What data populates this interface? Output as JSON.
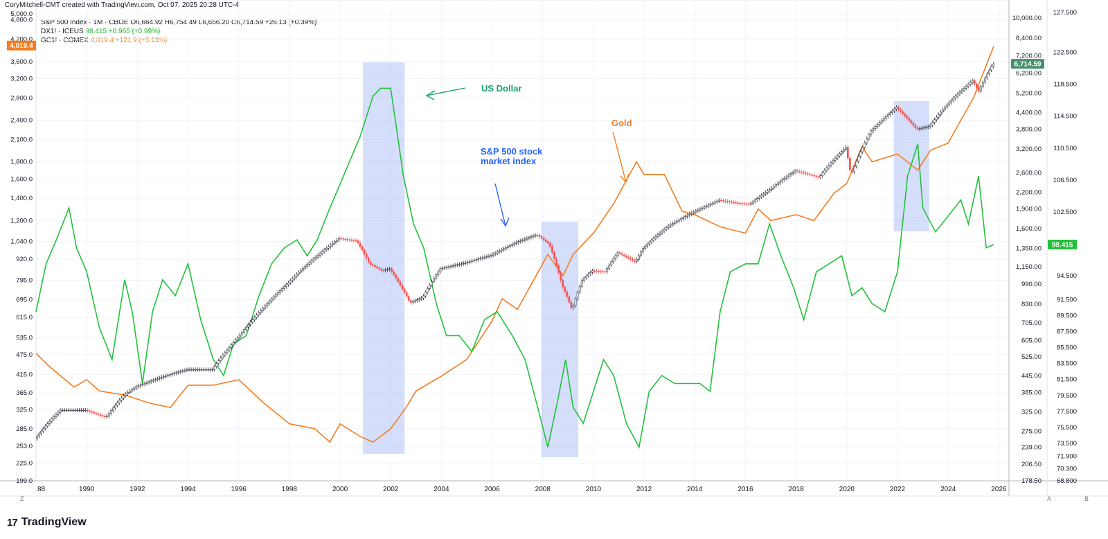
{
  "credit": "CoryMitchell-CMT created with TradingView.com, Oct 07, 2025 20:28 UTC-4",
  "legend": [
    {
      "symbol": "S&P 500 Index · 1M · CBOE",
      "values": "O6,664.92  H6,754.49  L6,656.20  C6,714.59  +26.13 (+0.39%)",
      "color": "#131722"
    },
    {
      "symbol": "DX1! · ICEUS",
      "values": "98.415  +0.965 (+0.99%)",
      "color": "#22ab2f"
    },
    {
      "symbol": "GC1! · COMEX",
      "values": "4,019.4  +121.9 (+3.13%)",
      "color": "#f57c1f"
    }
  ],
  "annotations": {
    "us_dollar": "US Dollar",
    "sp500_line1": "S&P 500 stock",
    "sp500_line2": "market index",
    "gold": "Gold"
  },
  "footer": {
    "logo_mark": "17",
    "brand": "TradingView"
  },
  "corner_labels": {
    "left": "Z",
    "a": "A",
    "b": "B"
  },
  "colors": {
    "sp_up": "#26a69a",
    "sp_down": "#ef5350",
    "sp_neutral": "#131722",
    "dxy": "#22c13a",
    "gold": "#f57c1f",
    "shade": "#b9c8f6",
    "us_dollar_text": "#1a9e6e",
    "sp_text": "#2962ff",
    "gold_text": "#f57c1f"
  },
  "chart_data": {
    "type": "line",
    "x_axis": {
      "ticks": [
        "88",
        "1990",
        "1992",
        "1994",
        "1996",
        "1998",
        "2000",
        "2002",
        "2004",
        "2006",
        "2008",
        "2010",
        "2012",
        "2014",
        "2016",
        "2018",
        "2020",
        "2022",
        "2024",
        "2026"
      ]
    },
    "left_axis_gold": {
      "ticks": [
        "5,000.0",
        "4,800.0",
        "4,200.0",
        "3,600.0",
        "3,200.0",
        "2,800.0",
        "2,400.0",
        "2,100.0",
        "1,800.0",
        "1,600.0",
        "1,400.0",
        "1,200.0",
        "1,040.0",
        "920.0",
        "795.0",
        "695.0",
        "615.0",
        "535.0",
        "475.0",
        "415.0",
        "365.0",
        "325.0",
        "285.0",
        "253.0",
        "225.0",
        "199.0"
      ],
      "last_value": "4,019.4"
    },
    "right_axis_sp500": {
      "ticks": [
        "10,000.00",
        "8,400.00",
        "7,200.00",
        "6,200.00",
        "5,200.00",
        "4,400.00",
        "3,800.00",
        "3,200.00",
        "2,600.00",
        "2,200.00",
        "1,900.00",
        "1,600.00",
        "1,350.00",
        "1,150.00",
        "990.00",
        "830.00",
        "705.00",
        "605.00",
        "525.00",
        "445.00",
        "385.00",
        "325.00",
        "275.00",
        "239.00",
        "206.50",
        "178.50"
      ],
      "last_value": "6,714.59"
    },
    "right_axis_dxy": {
      "ticks": [
        "127.500",
        "122.500",
        "118.500",
        "114.500",
        "110.500",
        "106.500",
        "102.500",
        "98.500",
        "94.500",
        "91.500",
        "89.500",
        "87.500",
        "85.500",
        "83.500",
        "81.500",
        "79.500",
        "77.500",
        "75.500",
        "73.500",
        "71.900",
        "70.300",
        "68.800"
      ],
      "last_value": "98.415"
    },
    "shaded_periods": [
      [
        2000.9,
        2002.55
      ],
      [
        2007.95,
        2009.4
      ],
      [
        2021.85,
        2023.25
      ]
    ],
    "series": [
      {
        "name": "S&P 500 Index",
        "axis": "sp500",
        "x": [
          1988.0,
          1989.0,
          1990.0,
          1990.8,
          1991.5,
          1992.0,
          1993.0,
          1994.0,
          1995.0,
          1996.0,
          1997.0,
          1998.0,
          1999.0,
          2000.0,
          2000.7,
          2001.2,
          2001.7,
          2002.0,
          2002.8,
          2003.3,
          2004.0,
          2005.0,
          2006.0,
          2007.0,
          2007.8,
          2008.3,
          2008.8,
          2009.2,
          2009.6,
          2010.0,
          2010.5,
          2011.0,
          2011.7,
          2012.0,
          2013.0,
          2014.0,
          2015.0,
          2015.7,
          2016.2,
          2017.0,
          2018.0,
          2018.95,
          2019.5,
          2020.0,
          2020.2,
          2020.7,
          2021.0,
          2022.0,
          2022.4,
          2022.8,
          2023.3,
          2024.0,
          2025.0,
          2025.25,
          2025.8
        ],
        "values": [
          257,
          330,
          330,
          310,
          375,
          405,
          440,
          470,
          470,
          620,
          800,
          1000,
          1230,
          1470,
          1440,
          1180,
          1110,
          1130,
          840,
          880,
          1130,
          1190,
          1270,
          1420,
          1520,
          1400,
          980,
          790,
          1030,
          1110,
          1100,
          1300,
          1200,
          1350,
          1640,
          1850,
          2050,
          2000,
          1980,
          2250,
          2650,
          2500,
          2900,
          3250,
          2550,
          3300,
          3750,
          4600,
          4200,
          3800,
          3900,
          4700,
          5800,
          5300,
          6700
        ]
      },
      {
        "name": "Gold",
        "axis": "gold",
        "x": [
          1988.0,
          1988.5,
          1989.5,
          1990.0,
          1990.5,
          1991.5,
          1992.5,
          1993.3,
          1994.0,
          1995.0,
          1996.0,
          1997.0,
          1998.0,
          1999.0,
          1999.6,
          2000.0,
          2000.8,
          2001.3,
          2002.0,
          2002.6,
          2003.0,
          2004.0,
          2005.0,
          2006.0,
          2006.4,
          2007.0,
          2008.2,
          2008.8,
          2009.2,
          2010.0,
          2010.8,
          2011.7,
          2012.0,
          2012.8,
          2013.5,
          2014.0,
          2015.0,
          2016.0,
          2016.5,
          2017.0,
          2018.0,
          2018.7,
          2019.5,
          2020.0,
          2020.6,
          2021.0,
          2022.0,
          2022.8,
          2023.3,
          2024.0,
          2024.5,
          2025.0,
          2025.8
        ],
        "values": [
          480,
          440,
          380,
          400,
          370,
          360,
          340,
          330,
          385,
          385,
          400,
          340,
          295,
          285,
          260,
          295,
          270,
          260,
          285,
          330,
          370,
          410,
          460,
          600,
          700,
          650,
          950,
          820,
          950,
          1100,
          1350,
          1800,
          1650,
          1650,
          1280,
          1250,
          1150,
          1100,
          1300,
          1200,
          1250,
          1200,
          1450,
          1550,
          2000,
          1800,
          1900,
          1700,
          1950,
          2050,
          2400,
          2800,
          4000
        ]
      },
      {
        "name": "DXY",
        "axis": "dxy",
        "x": [
          1988.0,
          1988.4,
          1988.8,
          1989.3,
          1989.6,
          1990.0,
          1990.5,
          1991.0,
          1991.5,
          1991.8,
          1992.2,
          1992.6,
          1993.0,
          1993.5,
          1994.0,
          1994.5,
          1995.0,
          1995.4,
          1995.8,
          1996.3,
          1996.8,
          1997.3,
          1997.8,
          1998.3,
          1998.7,
          1999.1,
          1999.6,
          2000.0,
          2000.4,
          2000.8,
          2001.3,
          2001.6,
          2002.0,
          2002.5,
          2002.9,
          2003.3,
          2003.8,
          2004.2,
          2004.7,
          2005.2,
          2005.7,
          2006.2,
          2006.8,
          2007.3,
          2007.8,
          2008.2,
          2008.6,
          2008.9,
          2009.2,
          2009.6,
          2010.0,
          2010.4,
          2010.8,
          2011.3,
          2011.8,
          2012.2,
          2012.7,
          2013.2,
          2013.7,
          2014.2,
          2014.6,
          2015.0,
          2015.4,
          2016.0,
          2016.5,
          2016.95,
          2017.4,
          2017.9,
          2018.3,
          2018.8,
          2019.3,
          2019.8,
          2020.2,
          2020.6,
          2021.0,
          2021.5,
          2022.0,
          2022.4,
          2022.8,
          2023.0,
          2023.5,
          2024.0,
          2024.5,
          2024.8,
          2025.2,
          2025.5,
          2025.8
        ],
        "values": [
          90,
          96,
          99,
          103,
          98,
          95,
          88,
          84,
          94,
          90,
          81,
          90,
          94,
          92,
          96,
          89,
          84,
          82,
          86,
          87,
          92,
          96,
          98,
          99,
          97,
          99,
          103,
          106,
          109,
          112,
          117,
          118,
          118,
          107,
          101,
          98,
          91,
          87,
          87,
          85,
          89,
          90,
          87,
          84,
          78,
          73,
          79,
          84,
          78,
          76,
          80,
          84,
          82,
          76,
          73,
          80,
          82,
          81,
          81,
          81,
          80,
          90,
          95,
          96,
          96,
          101,
          97,
          93,
          89,
          95,
          96,
          97,
          92,
          93,
          91,
          90,
          95,
          107,
          111,
          103,
          100,
          102,
          104,
          101,
          107,
          98,
          98.4
        ]
      }
    ]
  }
}
